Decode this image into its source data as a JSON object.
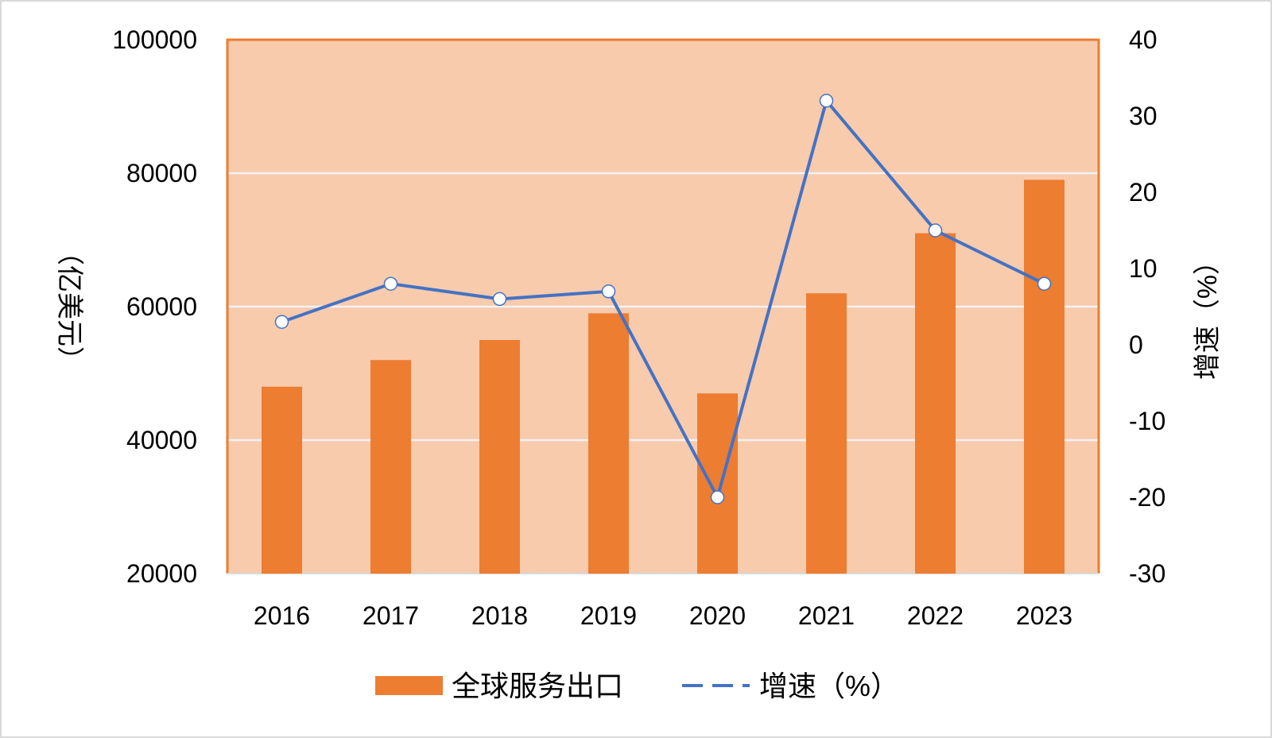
{
  "chart_data": {
    "type": "bar",
    "categories": [
      "2016",
      "2017",
      "2018",
      "2019",
      "2020",
      "2021",
      "2022",
      "2023"
    ],
    "series": [
      {
        "name": "全球服务出口",
        "type": "bar",
        "axis": "left",
        "color": "#ED7D31",
        "values": [
          48000,
          52000,
          55000,
          59000,
          47000,
          62000,
          71000,
          79000
        ]
      },
      {
        "name": "增速（%）",
        "type": "line",
        "axis": "right",
        "color": "#4472C4",
        "values": [
          3,
          8,
          6,
          7,
          -20,
          32,
          15,
          8
        ]
      }
    ],
    "ylabel": "（亿美元）",
    "ylabel_right": "增速（%）",
    "ylim": [
      20000,
      100000
    ],
    "yticks": [
      "20000",
      "40000",
      "60000",
      "80000",
      "100000"
    ],
    "ylim_right": [
      -30,
      40
    ],
    "yticks_right": [
      "-30",
      "-20",
      "-10",
      "0",
      "10",
      "20",
      "30",
      "40"
    ],
    "grid": true,
    "plot_background": "#F8CBAD",
    "plot_border": "#ED7D31",
    "gridline_color": "#F2F2F2",
    "legend_position": "bottom"
  }
}
